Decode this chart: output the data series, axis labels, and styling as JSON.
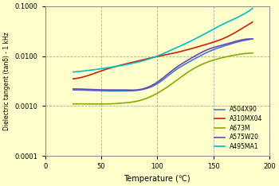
{
  "xlabel": "Temperature (℃)",
  "ylabel": "Dielectric tangent (tanδ) - 1 kHz",
  "background_color": "#FFFFCC",
  "xlim": [
    0,
    200
  ],
  "ylim_log": [
    0.0001,
    0.1
  ],
  "yticks": [
    0.0001,
    0.001,
    0.01,
    0.1
  ],
  "ytick_labels": [
    "0.0001",
    "0.0010",
    "0.0100",
    "0.1000"
  ],
  "xticks": [
    0,
    50,
    100,
    150,
    200
  ],
  "series": [
    {
      "name": "A504X90",
      "color": "#4477CC",
      "x": [
        25,
        40,
        55,
        70,
        85,
        100,
        115,
        130,
        145,
        160,
        175,
        185
      ],
      "y": [
        0.0021,
        0.00205,
        0.002,
        0.002,
        0.0021,
        0.0028,
        0.005,
        0.008,
        0.012,
        0.016,
        0.02,
        0.022
      ]
    },
    {
      "name": "A310MX04",
      "color": "#CC2200",
      "x": [
        25,
        40,
        55,
        70,
        85,
        100,
        115,
        130,
        145,
        160,
        175,
        185
      ],
      "y": [
        0.0035,
        0.0042,
        0.0055,
        0.0068,
        0.0082,
        0.0098,
        0.0115,
        0.014,
        0.0175,
        0.023,
        0.035,
        0.048
      ]
    },
    {
      "name": "A673M",
      "color": "#88AA00",
      "x": [
        25,
        40,
        55,
        70,
        85,
        100,
        115,
        130,
        145,
        160,
        175,
        185
      ],
      "y": [
        0.0011,
        0.0011,
        0.0011,
        0.00115,
        0.0013,
        0.0018,
        0.003,
        0.0052,
        0.0076,
        0.0095,
        0.011,
        0.0115
      ]
    },
    {
      "name": "A575W20",
      "color": "#6644BB",
      "x": [
        25,
        40,
        55,
        70,
        85,
        100,
        115,
        130,
        145,
        160,
        175,
        185
      ],
      "y": [
        0.0022,
        0.00215,
        0.0021,
        0.0021,
        0.00215,
        0.003,
        0.0055,
        0.009,
        0.0135,
        0.017,
        0.021,
        0.022
      ]
    },
    {
      "name": "A495MA1",
      "color": "#00BBCC",
      "x": [
        25,
        40,
        55,
        70,
        85,
        100,
        115,
        130,
        145,
        160,
        175,
        185
      ],
      "y": [
        0.0048,
        0.0052,
        0.0058,
        0.0066,
        0.0078,
        0.01,
        0.014,
        0.02,
        0.03,
        0.045,
        0.065,
        0.09
      ]
    }
  ]
}
